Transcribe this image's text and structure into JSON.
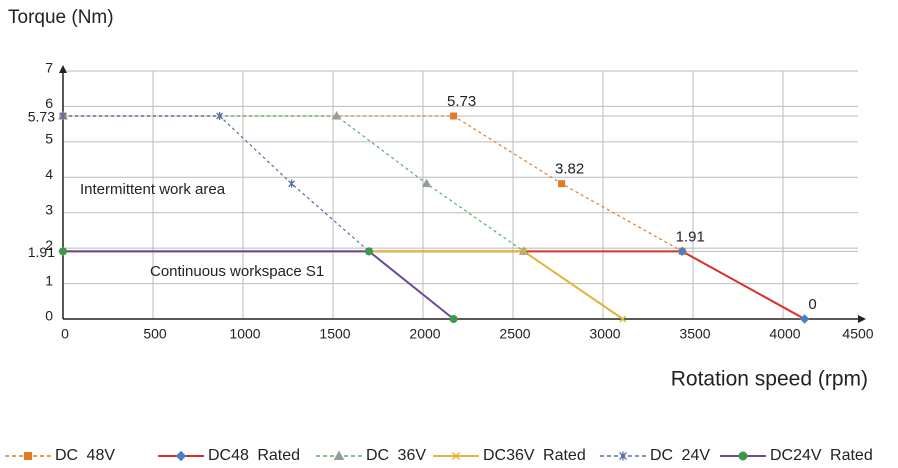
{
  "chart_data": {
    "type": "line",
    "y_axis_label": "Torque (Nm)",
    "x_axis_label": "Rotation speed (rpm)",
    "annotations": [
      "Intermittent work area",
      "Continuous workspace S1"
    ],
    "xlim": [
      0,
      4500
    ],
    "xticks": [
      0,
      500,
      1000,
      1500,
      2000,
      2500,
      3000,
      3500,
      4000,
      4500
    ],
    "ylim": [
      0,
      7
    ],
    "yticks": [
      0,
      1,
      1.91,
      2,
      3,
      4,
      5,
      5.73,
      6,
      7
    ],
    "grid": true,
    "series": [
      {
        "name": "DC 48V",
        "color": "#e07b28",
        "dashed": true,
        "marker": "square",
        "x": [
          0,
          2170,
          2770,
          3440
        ],
        "values": [
          5.73,
          5.73,
          3.82,
          1.91
        ],
        "value_labels": [
          null,
          "5.73",
          "3.82",
          "1.91"
        ]
      },
      {
        "name": "DC48 Rated",
        "color": "#d9302a",
        "marker_color": "#4a7fc1",
        "dashed": false,
        "marker": "diamond",
        "x": [
          0,
          3440,
          4120
        ],
        "values": [
          1.91,
          1.91,
          0
        ],
        "value_labels": [
          null,
          null,
          "0"
        ]
      },
      {
        "name": "DC 36V",
        "color": "#5aad6a",
        "marker_color": "#9a9a9a",
        "dashed": true,
        "marker": "triangle",
        "x": [
          0,
          1520,
          2020,
          2560
        ],
        "values": [
          5.73,
          5.73,
          3.82,
          1.91
        ]
      },
      {
        "name": "DC36V Rated",
        "color": "#e2b43a",
        "dashed": false,
        "marker": "x",
        "x": [
          0,
          2560,
          3110
        ],
        "values": [
          1.91,
          1.91,
          0
        ]
      },
      {
        "name": "DC 24V",
        "color": "#5b6aa8",
        "dashed": true,
        "marker": "star",
        "x": [
          0,
          870,
          1270,
          1700
        ],
        "values": [
          5.73,
          5.73,
          3.82,
          1.91
        ]
      },
      {
        "name": "DC24V Rated",
        "color": "#6a4a9c",
        "marker_color": "#3a9a48",
        "dashed": false,
        "marker": "circle",
        "x": [
          0,
          1700,
          2170
        ],
        "values": [
          1.91,
          1.91,
          0
        ]
      }
    ]
  }
}
